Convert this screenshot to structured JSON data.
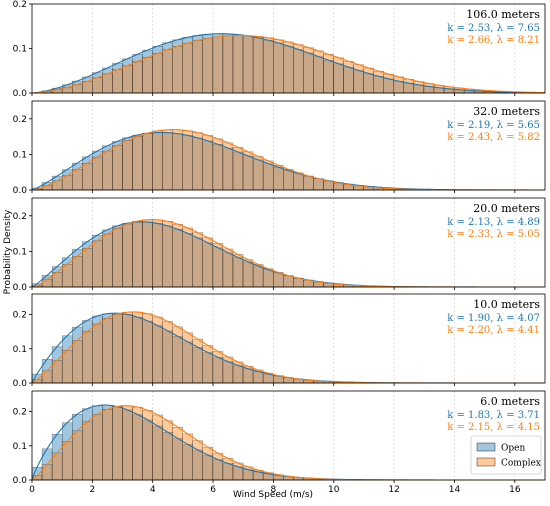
{
  "chart_data": {
    "type": "bar",
    "xlabel": "Wind Speed (m/s)",
    "ylabel": "Probability Density",
    "xlim": [
      0,
      17
    ],
    "xticks": [
      0,
      2,
      4,
      6,
      8,
      10,
      12,
      14,
      16
    ],
    "grid": "vertical dotted",
    "legend": {
      "placement": "bottom-right of last panel",
      "entries": [
        "Open",
        "Complex"
      ]
    },
    "colors": {
      "Open": "#1f77b4",
      "Complex": "#ff7f0e"
    },
    "bin_width": 0.333,
    "panels": [
      {
        "label": "106.0 meters",
        "ylim": [
          0,
          0.2
        ],
        "yticks": [
          0.0,
          0.1,
          0.2
        ],
        "series": [
          {
            "name": "Open",
            "k_label": "k = 2.53, λ = 7.65",
            "k": 2.53,
            "lambda": 7.65
          },
          {
            "name": "Complex",
            "k_label": "k = 2.66, λ = 8.21",
            "k": 2.66,
            "lambda": 8.21
          }
        ]
      },
      {
        "label": "32.0 meters",
        "ylim": [
          0,
          0.25
        ],
        "yticks": [
          0.0,
          0.1,
          0.2
        ],
        "series": [
          {
            "name": "Open",
            "k_label": "k = 2.19, λ = 5.65",
            "k": 2.19,
            "lambda": 5.65
          },
          {
            "name": "Complex",
            "k_label": "k = 2.43, λ = 5.82",
            "k": 2.43,
            "lambda": 5.82
          }
        ]
      },
      {
        "label": "20.0 meters",
        "ylim": [
          0,
          0.25
        ],
        "yticks": [
          0.0,
          0.1,
          0.2
        ],
        "series": [
          {
            "name": "Open",
            "k_label": "k = 2.13, λ = 4.89",
            "k": 2.13,
            "lambda": 4.89
          },
          {
            "name": "Complex",
            "k_label": "k = 2.33, λ = 5.05",
            "k": 2.33,
            "lambda": 5.05
          }
        ]
      },
      {
        "label": "10.0 meters",
        "ylim": [
          0,
          0.26
        ],
        "yticks": [
          0.0,
          0.1,
          0.2
        ],
        "series": [
          {
            "name": "Open",
            "k_label": "k = 1.90, λ = 4.07",
            "k": 1.9,
            "lambda": 4.07
          },
          {
            "name": "Complex",
            "k_label": "k = 2.20, λ = 4.41",
            "k": 2.2,
            "lambda": 4.41
          }
        ]
      },
      {
        "label": "6.0 meters",
        "ylim": [
          0,
          0.26
        ],
        "yticks": [
          0.0,
          0.1,
          0.2
        ],
        "series": [
          {
            "name": "Open",
            "k_label": "k = 1.83, λ = 3.71",
            "k": 1.83,
            "lambda": 3.71
          },
          {
            "name": "Complex",
            "k_label": "k = 2.15, λ = 4.15",
            "k": 2.15,
            "lambda": 4.15
          }
        ]
      }
    ]
  }
}
